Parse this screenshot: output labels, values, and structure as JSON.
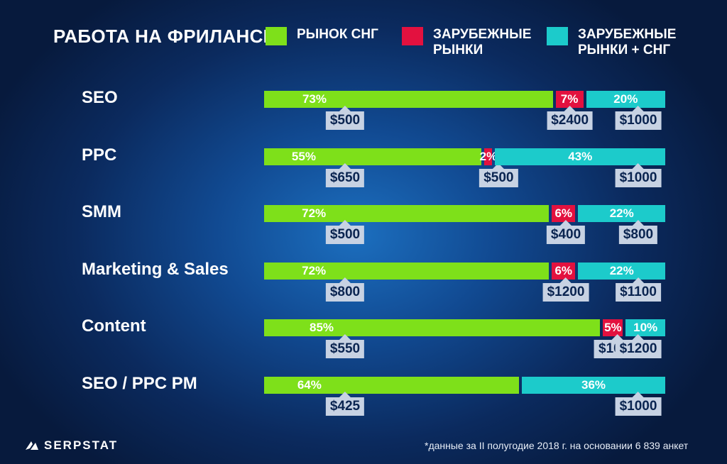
{
  "chart_data": {
    "type": "bar",
    "stacked": true,
    "orientation": "horizontal",
    "title": "РАБОТА НА ФРИЛАНСЕ",
    "series": [
      {
        "name": "РЫНОК СНГ",
        "color": "#7ee01a"
      },
      {
        "name": "ЗАРУБЕЖНЫЕ\nРЫНКИ",
        "color": "#e3113f"
      },
      {
        "name": "ЗАРУБЕЖНЫЕ\nРЫНКИ + СНГ",
        "color": "#1ccbcb"
      }
    ],
    "categories": [
      "SEO",
      "PPC",
      "SMM",
      "Marketing & Sales",
      "Content",
      "SEO / PPC PM"
    ],
    "rows": [
      {
        "values": [
          73,
          7,
          20
        ],
        "labels": [
          "73%",
          "7%",
          "20%"
        ],
        "prices": [
          "$500",
          "$2400",
          "$1000"
        ]
      },
      {
        "values": [
          55,
          2,
          43
        ],
        "labels": [
          "55%",
          "2%",
          "43%"
        ],
        "prices": [
          "$650",
          "$500",
          "$1000"
        ]
      },
      {
        "values": [
          72,
          6,
          22
        ],
        "labels": [
          "72%",
          "6%",
          "22%"
        ],
        "prices": [
          "$500",
          "$400",
          "$800"
        ]
      },
      {
        "values": [
          72,
          6,
          22
        ],
        "labels": [
          "72%",
          "6%",
          "22%"
        ],
        "prices": [
          "$800",
          "$1200",
          "$1100"
        ]
      },
      {
        "values": [
          85,
          5,
          10
        ],
        "labels": [
          "85%",
          "5%",
          "10%"
        ],
        "prices": [
          "$550",
          "$1000",
          "$1200"
        ]
      },
      {
        "values": [
          64,
          0,
          36
        ],
        "labels": [
          "64%",
          "",
          "36%"
        ],
        "prices": [
          "$425",
          "",
          "$1000"
        ]
      }
    ],
    "xlim": [
      0,
      100
    ],
    "grid": false,
    "legend_position": "top"
  },
  "brand": {
    "name": "SERPSTAT"
  },
  "footnote": "*данные за II полугодие 2018 г. на основании 6 839 анкет"
}
